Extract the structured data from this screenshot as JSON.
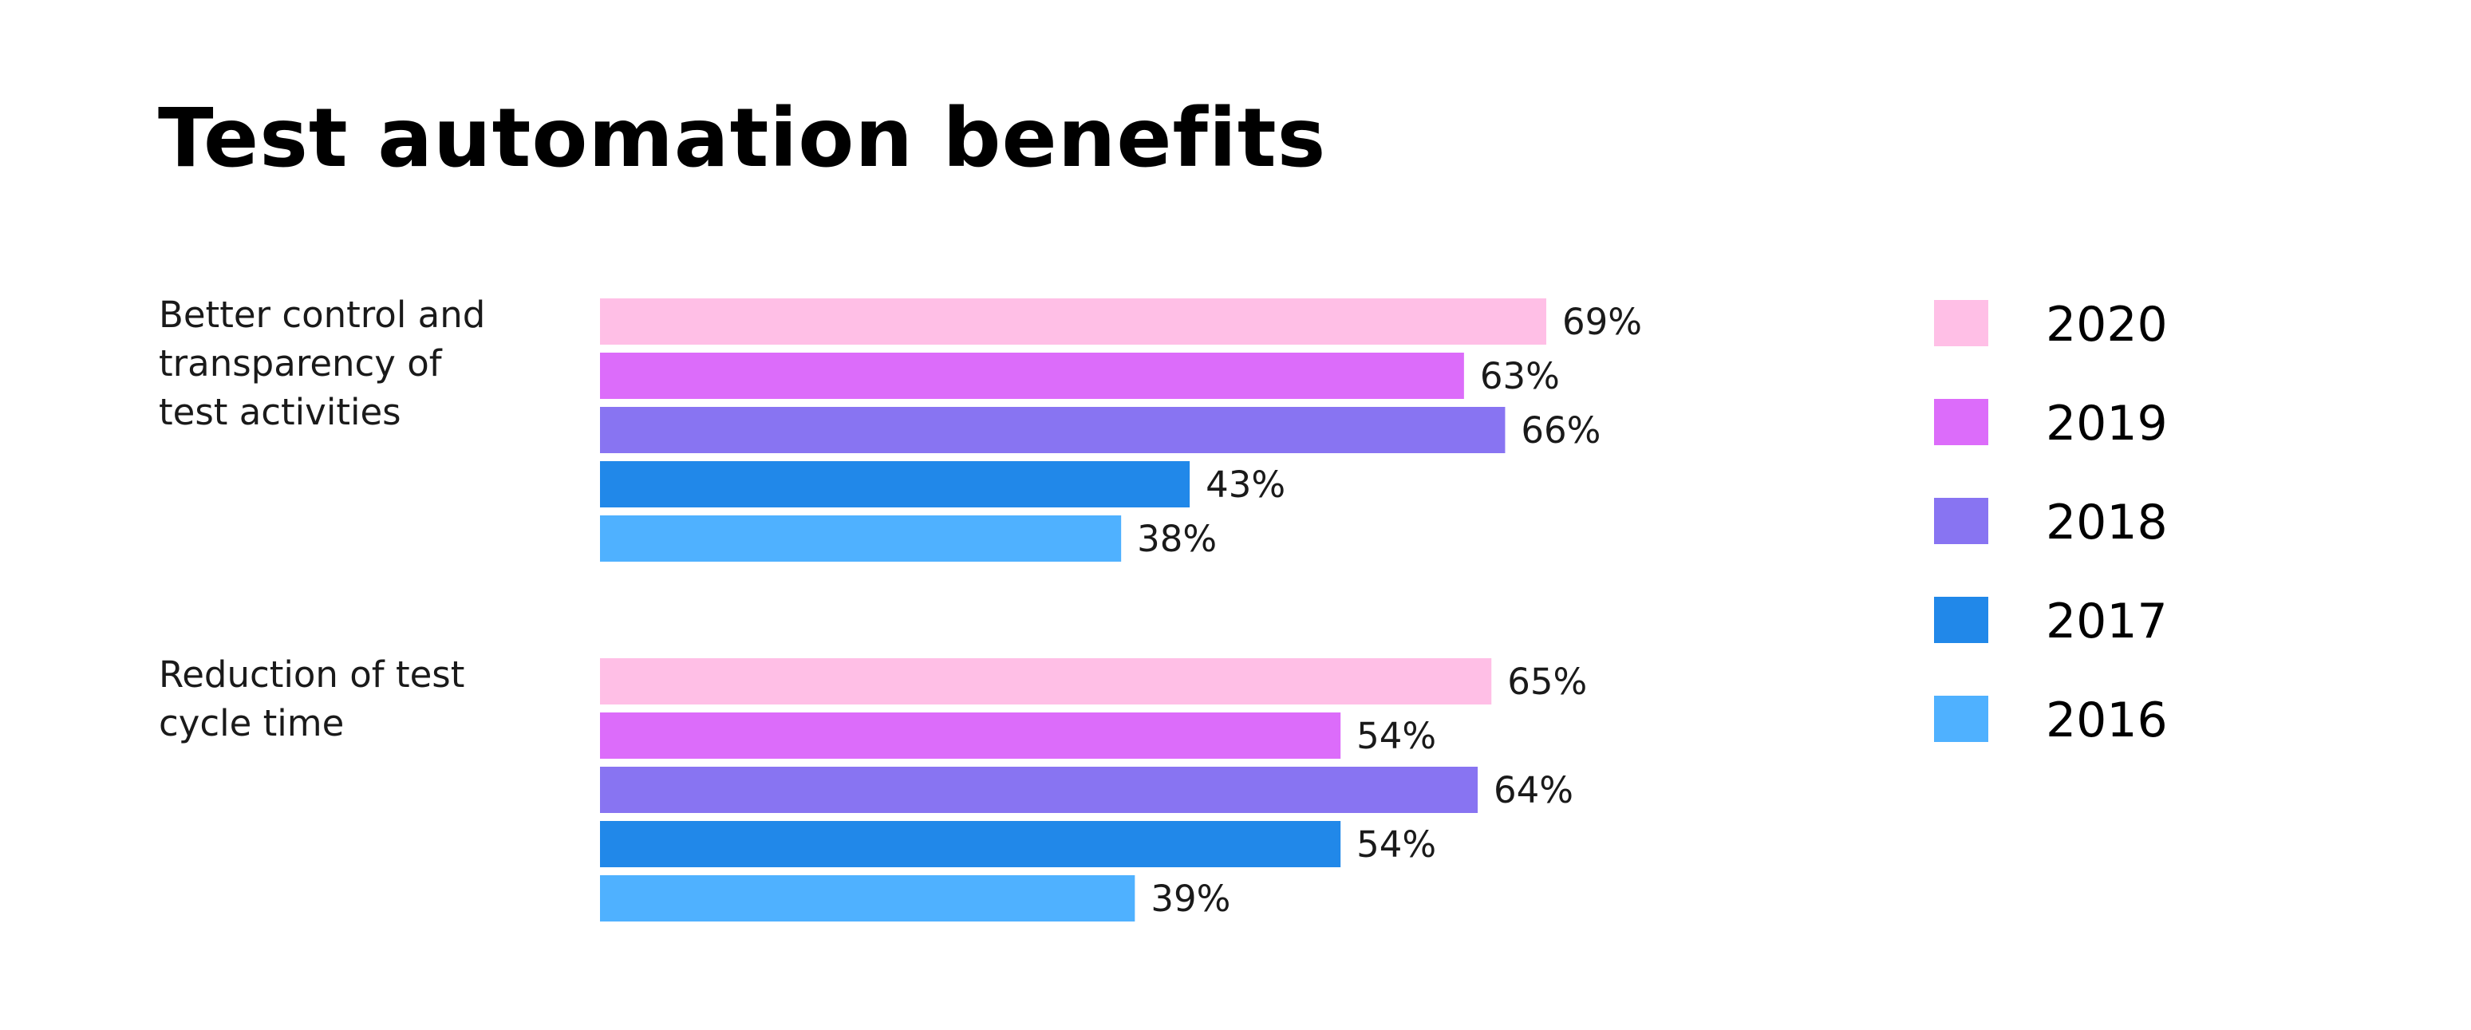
{
  "chart_data": {
    "type": "bar",
    "orientation": "horizontal",
    "title": "Test automation benefits",
    "value_suffix": "%",
    "categories": [
      [
        "Better control and",
        "transparency of",
        "test activities"
      ],
      [
        "Reduction of test",
        "cycle time"
      ]
    ],
    "series": [
      {
        "name": "2020",
        "color": "#ffbfe6",
        "values": [
          69,
          65
        ]
      },
      {
        "name": "2019",
        "color": "#dc6cfa",
        "values": [
          63,
          54
        ]
      },
      {
        "name": "2018",
        "color": "#8874f2",
        "values": [
          66,
          64
        ]
      },
      {
        "name": "2017",
        "color": "#2188e9",
        "values": [
          43,
          54
        ]
      },
      {
        "name": "2016",
        "color": "#4fb1ff",
        "values": [
          38,
          39
        ]
      }
    ],
    "xlim": [
      0,
      100
    ],
    "grid": false,
    "legend_position": "right"
  }
}
